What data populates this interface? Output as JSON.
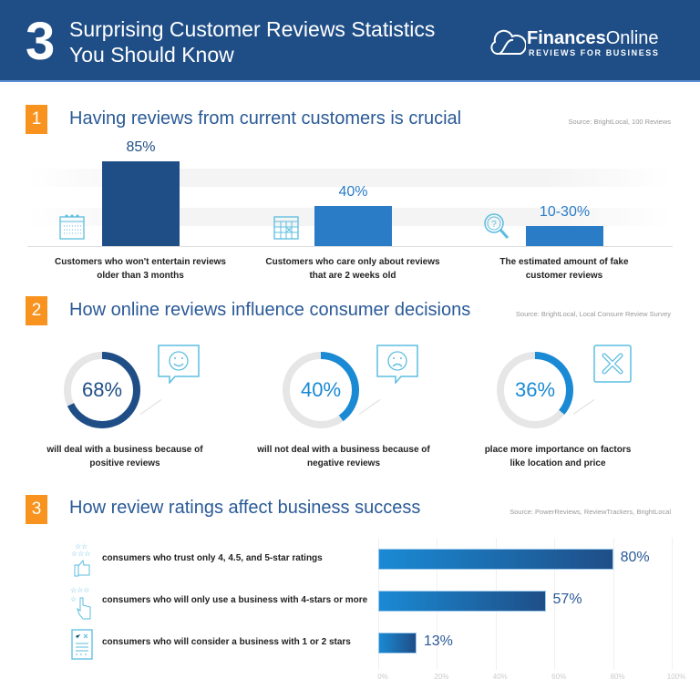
{
  "header": {
    "number": "3",
    "title_line1": "Surprising Customer Reviews Statistics",
    "title_line2": "You Should Know",
    "logo_bold": "Finances",
    "logo_light": "Online",
    "logo_tagline": "REVIEWS FOR BUSINESS",
    "bg_color": "#1f4e87"
  },
  "accent": "#f7931e",
  "sections": [
    {
      "number": "1",
      "title": "Having reviews from current customers is crucial",
      "source": "Source: BrightLocal, 100 Reviews"
    },
    {
      "number": "2",
      "title": "How online reviews influence consumer decisions",
      "source": "Source: BrightLocal, Local Consure Review Survey"
    },
    {
      "number": "3",
      "title": "How review ratings affect business success",
      "source": "Source: PowerReviews, ReviewTrackers, BrightLocal"
    }
  ],
  "chart_data": [
    {
      "type": "bar",
      "categories": [
        "Customers who won't entertain reviews older than 3 months",
        "Customers who care only about reviews that are 2 weeks old",
        "The estimated amount of fake customer  reviews"
      ],
      "cat_lines": [
        [
          "Customers who won't entertain reviews",
          "older than 3 months"
        ],
        [
          "Customers who care only about reviews",
          "that are 2 weeks old"
        ],
        [
          "The estimated amount of fake",
          "customer  reviews"
        ]
      ],
      "values": [
        85,
        40,
        20
      ],
      "labels": [
        "85%",
        "40%",
        "10-30%"
      ],
      "icons": [
        "calendar-icon",
        "calendar-marked-icon",
        "search-question-icon"
      ],
      "colors": [
        "#1f4e87",
        "#2a7cc7",
        "#2a7cc7"
      ]
    },
    {
      "type": "pie",
      "subtype": "donut",
      "values": [
        68,
        40,
        36
      ],
      "labels": [
        "68%",
        "40%",
        "36%"
      ],
      "captions": [
        [
          "will deal with a business because of",
          "positive reviews"
        ],
        [
          "will not deal with a business because of",
          "negative reviews"
        ],
        [
          "place more importance on factors",
          "like location and price"
        ]
      ],
      "icons": [
        "smiley-bubble-icon",
        "sad-bubble-icon",
        "cross-box-icon"
      ],
      "colors": [
        "#1f4e87",
        "#1a8ad4",
        "#1a8ad4"
      ]
    },
    {
      "type": "bar",
      "orientation": "horizontal",
      "categories": [
        "consumers who trust only 4, 4.5, and 5-star ratings",
        "consumers who will only use a business with 4-stars or more",
        "consumers who will consider a business with 1 or 2 stars"
      ],
      "values": [
        80,
        57,
        13
      ],
      "labels": [
        "80%",
        "57%",
        "13%"
      ],
      "xlim": [
        0,
        100
      ],
      "xticks": [
        "0%",
        "20%",
        "40%",
        "60%",
        "80%",
        "100%"
      ],
      "grid": true,
      "icons": [
        "stars-thumbs-up-icon",
        "stars-pointer-icon",
        "checklist-icon"
      ]
    }
  ]
}
